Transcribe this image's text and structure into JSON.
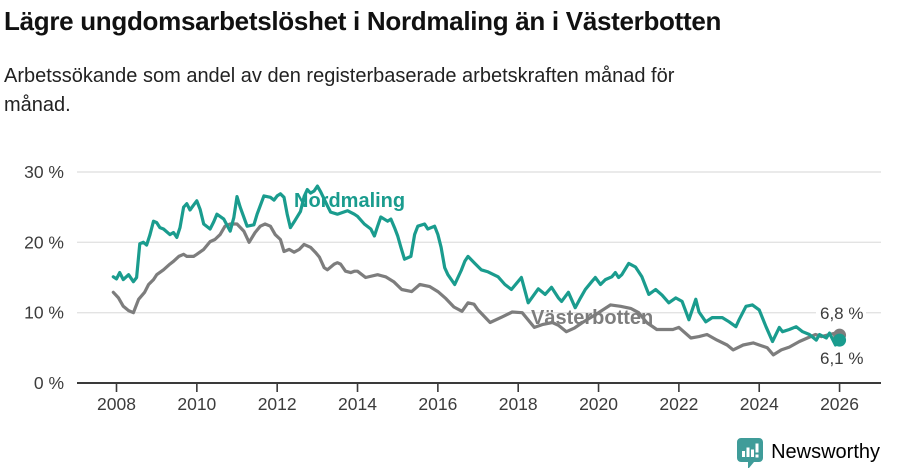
{
  "header": {
    "title": "Lägre ungdomsarbetslöshet i Nordmaling än i Västerbotten",
    "subtitle_lines": [
      "Arbetssökande som andel av den registerbaserade arbetskraften månad för",
      "månad."
    ]
  },
  "chart_data": {
    "type": "line",
    "title": "Lägre ungdomsarbetslöshet i Nordmaling än i Västerbotten",
    "ylabel": "Arbetssökande som andel av den registerbaserade arbetskraften",
    "unit": "%",
    "grid": "horizontal",
    "legend_position": "inline-labels",
    "ylim": [
      0,
      30
    ],
    "xlim": [
      2007.8,
      2026.3
    ],
    "yticks": [
      0,
      10,
      20,
      30
    ],
    "ytick_labels": [
      "0 %",
      "10 %",
      "20 %",
      "30 %"
    ],
    "x_ticks": [
      2008,
      2010,
      2012,
      2014,
      2016,
      2018,
      2020,
      2022,
      2024,
      2026
    ],
    "x_tick_labels": [
      "2008",
      "2010",
      "2012",
      "2014",
      "2016",
      "2018",
      "2020",
      "2022",
      "2024",
      "2026"
    ],
    "series": [
      {
        "name": "Nordmaling",
        "color": "#1a9c8e",
        "end_label": "6,1 %",
        "end_value": 6.1,
        "points": [
          [
            2007.92,
            15.1
          ],
          [
            2008.0,
            14.8
          ],
          [
            2008.08,
            15.7
          ],
          [
            2008.17,
            14.7
          ],
          [
            2008.3,
            15.4
          ],
          [
            2008.42,
            14.4
          ],
          [
            2008.5,
            15.0
          ],
          [
            2008.58,
            19.8
          ],
          [
            2008.67,
            20.0
          ],
          [
            2008.75,
            19.6
          ],
          [
            2008.83,
            21.0
          ],
          [
            2008.92,
            23.0
          ],
          [
            2009.0,
            22.8
          ],
          [
            2009.08,
            22.1
          ],
          [
            2009.17,
            21.9
          ],
          [
            2009.33,
            21.1
          ],
          [
            2009.42,
            21.4
          ],
          [
            2009.5,
            20.7
          ],
          [
            2009.58,
            22.1
          ],
          [
            2009.67,
            25.0
          ],
          [
            2009.75,
            25.5
          ],
          [
            2009.83,
            24.6
          ],
          [
            2009.92,
            25.3
          ],
          [
            2010.0,
            25.9
          ],
          [
            2010.08,
            24.7
          ],
          [
            2010.17,
            22.6
          ],
          [
            2010.33,
            21.9
          ],
          [
            2010.42,
            22.9
          ],
          [
            2010.5,
            24.0
          ],
          [
            2010.67,
            23.3
          ],
          [
            2010.83,
            21.6
          ],
          [
            2010.92,
            23.5
          ],
          [
            2011.0,
            26.5
          ],
          [
            2011.08,
            25.0
          ],
          [
            2011.25,
            22.3
          ],
          [
            2011.42,
            22.5
          ],
          [
            2011.5,
            24.0
          ],
          [
            2011.67,
            26.6
          ],
          [
            2011.83,
            26.4
          ],
          [
            2011.92,
            26.0
          ],
          [
            2012.0,
            26.6
          ],
          [
            2012.08,
            26.9
          ],
          [
            2012.17,
            26.4
          ],
          [
            2012.25,
            24.0
          ],
          [
            2012.33,
            22.1
          ],
          [
            2012.42,
            22.9
          ],
          [
            2012.58,
            24.4
          ],
          [
            2012.67,
            26.5
          ],
          [
            2012.75,
            27.5
          ],
          [
            2012.83,
            27.0
          ],
          [
            2012.92,
            27.3
          ],
          [
            2013.0,
            28.0
          ],
          [
            2013.08,
            27.2
          ],
          [
            2013.25,
            25.2
          ],
          [
            2013.33,
            24.3
          ],
          [
            2013.5,
            24.0
          ],
          [
            2013.75,
            24.5
          ],
          [
            2013.92,
            24.0
          ],
          [
            2014.0,
            23.7
          ],
          [
            2014.17,
            22.6
          ],
          [
            2014.33,
            21.9
          ],
          [
            2014.42,
            20.9
          ],
          [
            2014.5,
            22.3
          ],
          [
            2014.58,
            23.6
          ],
          [
            2014.75,
            23.0
          ],
          [
            2014.83,
            23.3
          ],
          [
            2014.92,
            22.1
          ],
          [
            2015.0,
            20.9
          ],
          [
            2015.08,
            19.3
          ],
          [
            2015.17,
            17.6
          ],
          [
            2015.33,
            18.0
          ],
          [
            2015.42,
            21.1
          ],
          [
            2015.5,
            22.3
          ],
          [
            2015.67,
            22.6
          ],
          [
            2015.75,
            21.9
          ],
          [
            2015.92,
            22.3
          ],
          [
            2016.0,
            21.1
          ],
          [
            2016.08,
            19.3
          ],
          [
            2016.17,
            16.4
          ],
          [
            2016.25,
            15.4
          ],
          [
            2016.42,
            14.0
          ],
          [
            2016.58,
            16.0
          ],
          [
            2016.67,
            17.3
          ],
          [
            2016.75,
            18.0
          ],
          [
            2016.92,
            17.0
          ],
          [
            2017.08,
            16.1
          ],
          [
            2017.25,
            15.8
          ],
          [
            2017.5,
            15.1
          ],
          [
            2017.67,
            14.0
          ],
          [
            2017.83,
            13.3
          ],
          [
            2018.08,
            15.0
          ],
          [
            2018.25,
            11.4
          ],
          [
            2018.5,
            13.4
          ],
          [
            2018.67,
            12.6
          ],
          [
            2018.83,
            13.6
          ],
          [
            2019.0,
            12.1
          ],
          [
            2019.08,
            11.6
          ],
          [
            2019.25,
            12.9
          ],
          [
            2019.42,
            10.7
          ],
          [
            2019.55,
            12.1
          ],
          [
            2019.67,
            13.3
          ],
          [
            2019.83,
            14.4
          ],
          [
            2019.92,
            15.0
          ],
          [
            2020.05,
            14.0
          ],
          [
            2020.17,
            14.7
          ],
          [
            2020.33,
            15.1
          ],
          [
            2020.42,
            15.7
          ],
          [
            2020.5,
            15.0
          ],
          [
            2020.58,
            15.4
          ],
          [
            2020.75,
            17.0
          ],
          [
            2020.92,
            16.5
          ],
          [
            2021.08,
            15.1
          ],
          [
            2021.25,
            12.6
          ],
          [
            2021.42,
            13.3
          ],
          [
            2021.58,
            12.5
          ],
          [
            2021.75,
            11.4
          ],
          [
            2021.92,
            12.1
          ],
          [
            2022.08,
            11.6
          ],
          [
            2022.25,
            9.0
          ],
          [
            2022.42,
            11.9
          ],
          [
            2022.5,
            10.1
          ],
          [
            2022.67,
            8.7
          ],
          [
            2022.83,
            9.3
          ],
          [
            2023.08,
            9.3
          ],
          [
            2023.25,
            8.7
          ],
          [
            2023.42,
            8.0
          ],
          [
            2023.5,
            9.0
          ],
          [
            2023.67,
            10.9
          ],
          [
            2023.83,
            11.1
          ],
          [
            2024.0,
            10.4
          ],
          [
            2024.17,
            8.0
          ],
          [
            2024.33,
            5.9
          ],
          [
            2024.5,
            7.9
          ],
          [
            2024.58,
            7.3
          ],
          [
            2024.75,
            7.6
          ],
          [
            2024.92,
            8.0
          ],
          [
            2025.08,
            7.3
          ],
          [
            2025.25,
            6.9
          ],
          [
            2025.42,
            6.1
          ],
          [
            2025.5,
            6.9
          ],
          [
            2025.67,
            6.4
          ],
          [
            2025.75,
            7.1
          ],
          [
            2025.9,
            5.4
          ],
          [
            2026.0,
            6.1
          ]
        ]
      },
      {
        "name": "Västerbotten",
        "color": "#7d7d7d",
        "end_label": "6,8 %",
        "end_value": 6.8,
        "points": [
          [
            2007.92,
            12.9
          ],
          [
            2008.05,
            12.1
          ],
          [
            2008.17,
            10.9
          ],
          [
            2008.3,
            10.3
          ],
          [
            2008.42,
            10.0
          ],
          [
            2008.55,
            11.9
          ],
          [
            2008.7,
            12.9
          ],
          [
            2008.8,
            14.0
          ],
          [
            2008.92,
            14.7
          ],
          [
            2009.0,
            15.4
          ],
          [
            2009.17,
            16.1
          ],
          [
            2009.33,
            16.9
          ],
          [
            2009.42,
            17.3
          ],
          [
            2009.55,
            18.0
          ],
          [
            2009.67,
            18.3
          ],
          [
            2009.75,
            18.0
          ],
          [
            2009.92,
            18.0
          ],
          [
            2010.0,
            18.3
          ],
          [
            2010.17,
            19.0
          ],
          [
            2010.33,
            20.1
          ],
          [
            2010.45,
            20.4
          ],
          [
            2010.58,
            21.1
          ],
          [
            2010.7,
            22.3
          ],
          [
            2010.83,
            22.6
          ],
          [
            2011.0,
            22.6
          ],
          [
            2011.17,
            21.6
          ],
          [
            2011.3,
            20.0
          ],
          [
            2011.45,
            21.4
          ],
          [
            2011.58,
            22.3
          ],
          [
            2011.7,
            22.6
          ],
          [
            2011.83,
            22.3
          ],
          [
            2011.95,
            21.1
          ],
          [
            2012.08,
            20.4
          ],
          [
            2012.17,
            18.7
          ],
          [
            2012.3,
            19.0
          ],
          [
            2012.42,
            18.6
          ],
          [
            2012.55,
            19.0
          ],
          [
            2012.67,
            19.7
          ],
          [
            2012.83,
            19.3
          ],
          [
            2012.95,
            18.6
          ],
          [
            2013.05,
            17.9
          ],
          [
            2013.17,
            16.4
          ],
          [
            2013.25,
            16.1
          ],
          [
            2013.42,
            16.9
          ],
          [
            2013.5,
            17.1
          ],
          [
            2013.58,
            16.9
          ],
          [
            2013.7,
            15.9
          ],
          [
            2013.83,
            15.7
          ],
          [
            2013.92,
            15.9
          ],
          [
            2014.0,
            15.9
          ],
          [
            2014.2,
            15.0
          ],
          [
            2014.5,
            15.4
          ],
          [
            2014.7,
            15.1
          ],
          [
            2014.9,
            14.4
          ],
          [
            2015.1,
            13.3
          ],
          [
            2015.35,
            13.0
          ],
          [
            2015.55,
            14.0
          ],
          [
            2015.8,
            13.7
          ],
          [
            2016.0,
            13.0
          ],
          [
            2016.2,
            12.0
          ],
          [
            2016.4,
            10.8
          ],
          [
            2016.6,
            10.2
          ],
          [
            2016.75,
            11.4
          ],
          [
            2016.9,
            11.2
          ],
          [
            2017.0,
            10.4
          ],
          [
            2017.3,
            8.6
          ],
          [
            2017.6,
            9.4
          ],
          [
            2017.85,
            10.1
          ],
          [
            2018.1,
            10.0
          ],
          [
            2018.4,
            7.9
          ],
          [
            2018.6,
            8.3
          ],
          [
            2018.85,
            8.6
          ],
          [
            2019.0,
            8.2
          ],
          [
            2019.2,
            7.3
          ],
          [
            2019.4,
            7.8
          ],
          [
            2019.6,
            8.6
          ],
          [
            2019.8,
            9.3
          ],
          [
            2020.0,
            10.0
          ],
          [
            2020.3,
            11.1
          ],
          [
            2020.55,
            10.9
          ],
          [
            2020.8,
            10.6
          ],
          [
            2021.0,
            10.0
          ],
          [
            2021.2,
            8.6
          ],
          [
            2021.45,
            7.6
          ],
          [
            2021.6,
            7.6
          ],
          [
            2021.85,
            7.6
          ],
          [
            2022.0,
            7.9
          ],
          [
            2022.3,
            6.4
          ],
          [
            2022.5,
            6.6
          ],
          [
            2022.7,
            6.9
          ],
          [
            2022.95,
            6.1
          ],
          [
            2023.2,
            5.4
          ],
          [
            2023.35,
            4.7
          ],
          [
            2023.6,
            5.4
          ],
          [
            2023.85,
            5.7
          ],
          [
            2024.0,
            5.4
          ],
          [
            2024.2,
            5.0
          ],
          [
            2024.35,
            4.0
          ],
          [
            2024.55,
            4.7
          ],
          [
            2024.75,
            5.1
          ],
          [
            2025.0,
            5.9
          ],
          [
            2025.2,
            6.4
          ],
          [
            2025.4,
            6.9
          ],
          [
            2025.55,
            6.6
          ],
          [
            2025.75,
            6.9
          ],
          [
            2025.9,
            7.1
          ],
          [
            2026.0,
            6.8
          ]
        ]
      }
    ],
    "colors": {
      "grid": "#e3e3e3",
      "axis": "#3a3a3a",
      "tick_text": "#3c3c3c"
    }
  },
  "footer": {
    "brand": "Newsworthy",
    "brand_color": "#3f9c99"
  }
}
